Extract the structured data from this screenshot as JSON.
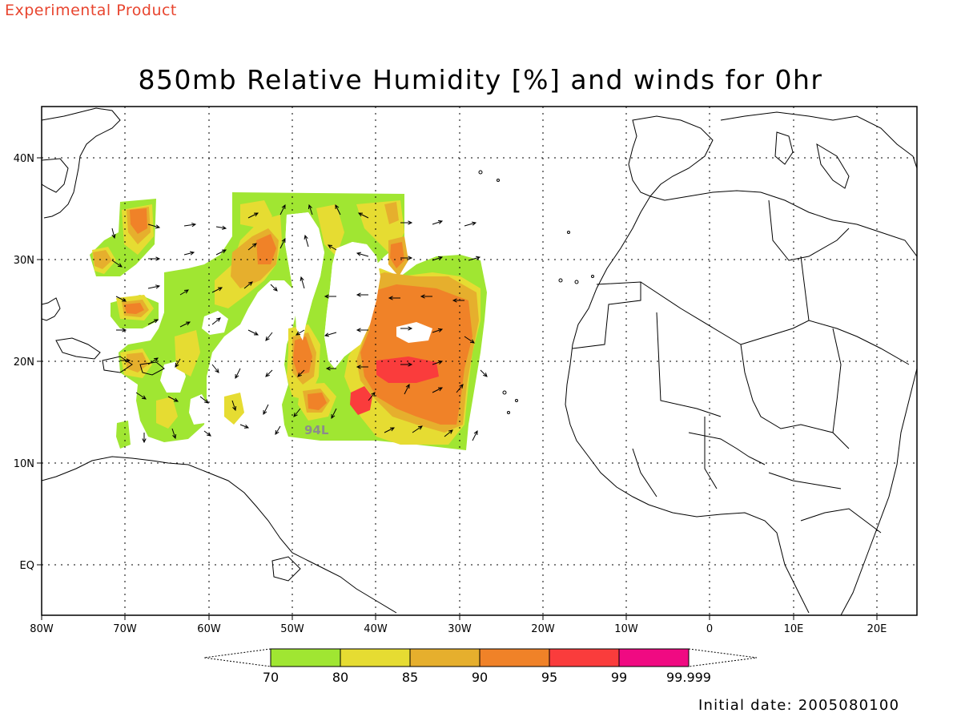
{
  "header": {
    "product_label": "Experimental Product",
    "title": "850mb Relative Humidity [%] and winds for 0hr"
  },
  "map": {
    "projection": "cylindrical equidistant",
    "lon_range": [
      -80,
      25
    ],
    "lat_range": [
      -6,
      45
    ],
    "lat_labels": [
      "40N",
      "30N",
      "20N",
      "10N",
      "EQ"
    ],
    "lon_labels": [
      "80W",
      "70W",
      "60W",
      "50W",
      "40W",
      "30W",
      "20W",
      "10W",
      "0",
      "10E",
      "20E"
    ],
    "grid": "dotted",
    "storm_label": "94L",
    "storm_label_color": "#8c8c8c"
  },
  "colorbar": {
    "labels": [
      "70",
      "80",
      "85",
      "90",
      "95",
      "99",
      "99.999"
    ],
    "colors": [
      "#a0e632",
      "#e6dc32",
      "#e6af2d",
      "#f08228",
      "#fa3c3c",
      "#f00a82"
    ]
  },
  "footer": {
    "initial_date": "Initial date: 2005080100"
  }
}
